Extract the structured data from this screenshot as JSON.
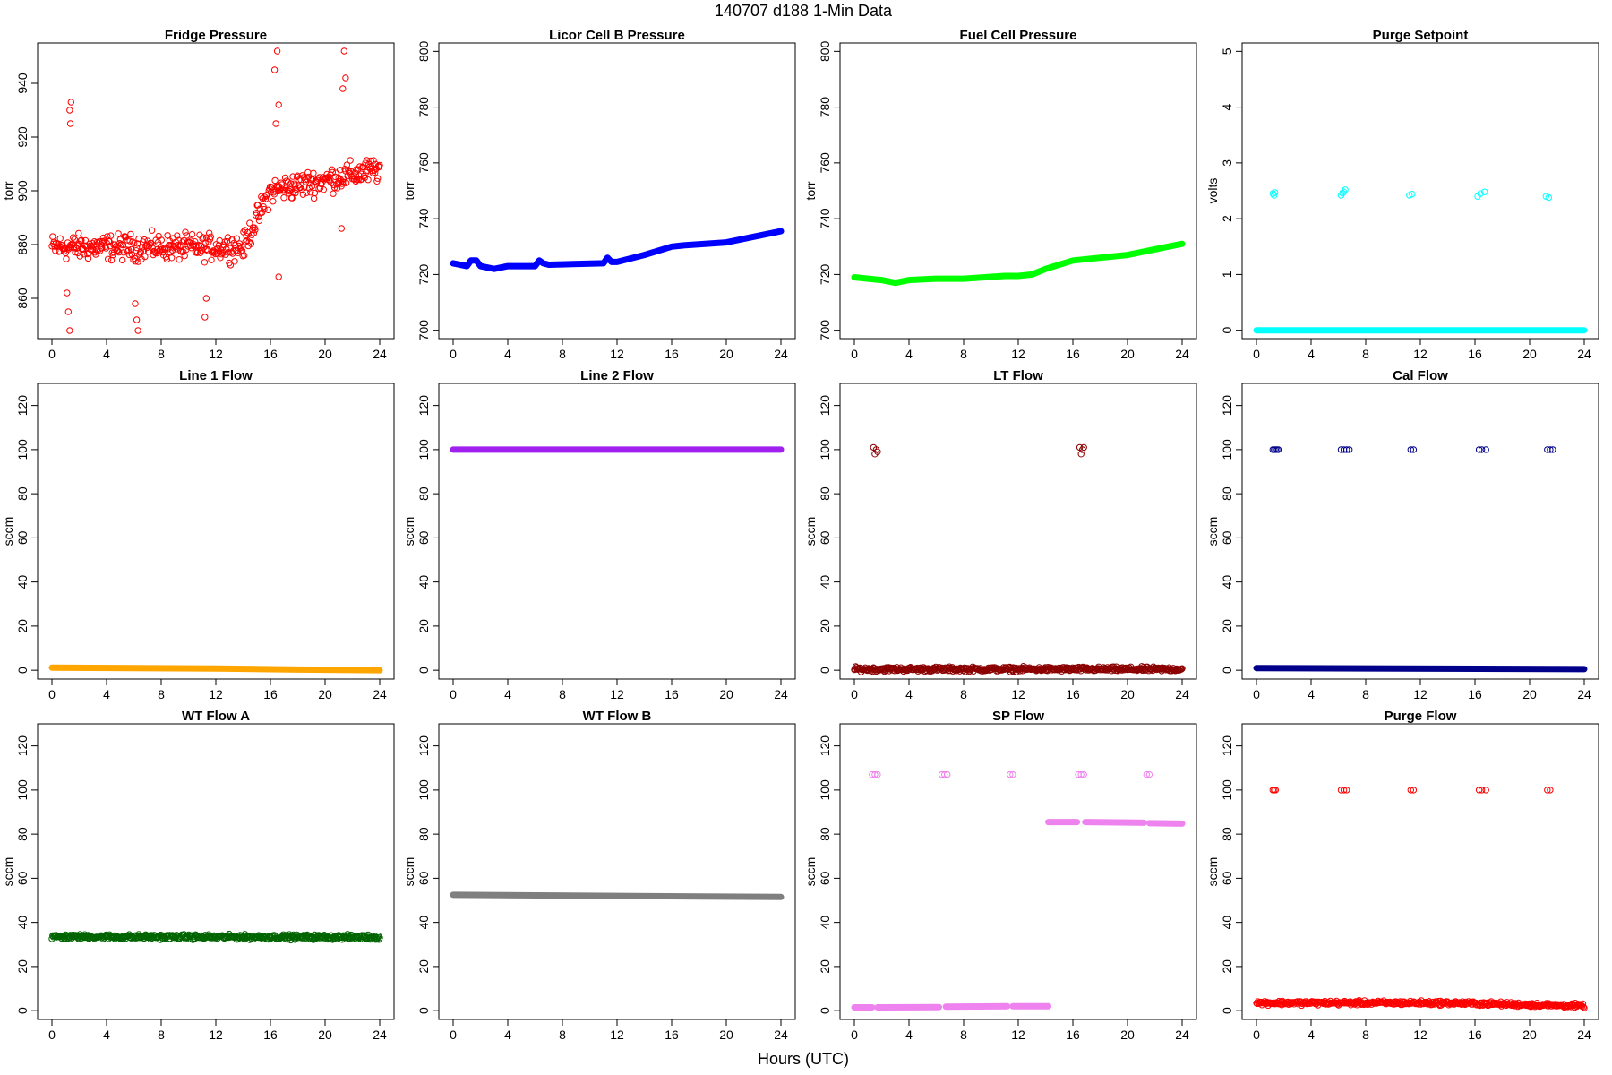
{
  "figure": {
    "title": "140707   d188   1-Min Data",
    "xlabel": "Hours (UTC)"
  },
  "chart_data": [
    {
      "type": "scatter",
      "title": "Fridge Pressure",
      "ylabel": "torr",
      "color": "#FF0000",
      "xlim": [
        0,
        24
      ],
      "ylim": [
        845,
        955
      ],
      "xticks": [
        0,
        4,
        8,
        12,
        16,
        20,
        24
      ],
      "yticks": [
        860,
        880,
        900,
        920,
        940
      ],
      "series": [
        {
          "kind": "noise",
          "x": [
            0,
            14,
            16,
            24
          ],
          "y": [
            879,
            879,
            900,
            908
          ],
          "spread": 7
        },
        {
          "kind": "cluster",
          "points": [
            [
              1.3,
              930
            ],
            [
              1.35,
              925
            ],
            [
              1.4,
              933
            ],
            [
              1.2,
              855
            ],
            [
              1.3,
              848
            ],
            [
              1.1,
              862
            ],
            [
              6.2,
              852
            ],
            [
              6.3,
              848
            ],
            [
              6.1,
              858
            ],
            [
              11.2,
              853
            ],
            [
              11.3,
              860
            ],
            [
              16.3,
              945
            ],
            [
              16.5,
              952
            ],
            [
              16.6,
              932
            ],
            [
              16.4,
              925
            ],
            [
              16.6,
              868
            ],
            [
              21.4,
              952
            ],
            [
              21.5,
              942
            ],
            [
              21.2,
              886
            ],
            [
              21.3,
              938
            ]
          ]
        }
      ]
    },
    {
      "type": "scatter",
      "title": "Licor Cell B Pressure",
      "ylabel": "torr",
      "color": "#0000FF",
      "xlim": [
        0,
        24
      ],
      "ylim": [
        697,
        803
      ],
      "xticks": [
        0,
        4,
        8,
        12,
        16,
        20,
        24
      ],
      "yticks": [
        700,
        720,
        740,
        760,
        780,
        800
      ],
      "series": [
        {
          "kind": "line",
          "x": [
            0,
            1,
            1.3,
            1.7,
            2,
            3,
            4,
            6,
            6.3,
            6.6,
            7,
            11,
            11.3,
            11.6,
            12,
            14,
            16,
            17,
            20,
            24
          ],
          "y": [
            724,
            723,
            725,
            725,
            723,
            722,
            723,
            723,
            725,
            724,
            723.5,
            724,
            726,
            724.5,
            724.5,
            727,
            730,
            730.5,
            731.5,
            735.5
          ]
        }
      ]
    },
    {
      "type": "scatter",
      "title": "Fuel Cell Pressure",
      "ylabel": "torr",
      "color": "#00FF00",
      "xlim": [
        0,
        24
      ],
      "ylim": [
        697,
        803
      ],
      "xticks": [
        0,
        4,
        8,
        12,
        16,
        20,
        24
      ],
      "yticks": [
        700,
        720,
        740,
        760,
        780,
        800
      ],
      "series": [
        {
          "kind": "line",
          "x": [
            0,
            1,
            2,
            3,
            4,
            6,
            8,
            11,
            12,
            13,
            14,
            16,
            18,
            20,
            24
          ],
          "y": [
            719,
            718.5,
            718,
            717,
            718,
            718.5,
            718.5,
            719.5,
            719.5,
            720,
            722,
            725,
            726,
            727,
            731
          ]
        }
      ]
    },
    {
      "type": "scatter",
      "title": "Purge Setpoint",
      "ylabel": "volts",
      "color": "#00FFFF",
      "xlim": [
        0,
        24
      ],
      "ylim": [
        -0.15,
        5.15
      ],
      "xticks": [
        0,
        4,
        8,
        12,
        16,
        20,
        24
      ],
      "yticks": [
        0,
        1,
        2,
        3,
        4,
        5
      ],
      "series": [
        {
          "kind": "line",
          "x": [
            0,
            24
          ],
          "y": [
            0,
            0
          ]
        },
        {
          "kind": "cluster",
          "points": [
            [
              1.2,
              2.45
            ],
            [
              1.3,
              2.42
            ],
            [
              1.35,
              2.47
            ],
            [
              6.2,
              2.42
            ],
            [
              6.3,
              2.46
            ],
            [
              6.4,
              2.48
            ],
            [
              6.5,
              2.52
            ],
            [
              11.2,
              2.42
            ],
            [
              11.4,
              2.44
            ],
            [
              16.2,
              2.4
            ],
            [
              16.4,
              2.45
            ],
            [
              16.7,
              2.48
            ],
            [
              21.2,
              2.4
            ],
            [
              21.4,
              2.38
            ]
          ]
        }
      ]
    },
    {
      "type": "scatter",
      "title": "Line 1 Flow",
      "ylabel": "sccm",
      "color": "#FFA500",
      "xlim": [
        0,
        24
      ],
      "ylim": [
        -4,
        130
      ],
      "xticks": [
        0,
        4,
        8,
        12,
        16,
        20,
        24
      ],
      "yticks": [
        0,
        20,
        40,
        60,
        80,
        100,
        120
      ],
      "series": [
        {
          "kind": "line",
          "x": [
            0,
            6,
            12,
            18,
            24
          ],
          "y": [
            1.2,
            1,
            0.8,
            0.3,
            0
          ]
        }
      ]
    },
    {
      "type": "scatter",
      "title": "Line 2 Flow",
      "ylabel": "sccm",
      "color": "#A020F0",
      "xlim": [
        0,
        24
      ],
      "ylim": [
        -4,
        130
      ],
      "xticks": [
        0,
        4,
        8,
        12,
        16,
        20,
        24
      ],
      "yticks": [
        0,
        20,
        40,
        60,
        80,
        100,
        120
      ],
      "series": [
        {
          "kind": "line",
          "x": [
            0,
            24
          ],
          "y": [
            100,
            100
          ]
        }
      ]
    },
    {
      "type": "scatter",
      "title": "LT Flow",
      "ylabel": "sccm",
      "color": "#8B0000",
      "xlim": [
        0,
        24
      ],
      "ylim": [
        -4,
        130
      ],
      "xticks": [
        0,
        4,
        8,
        12,
        16,
        20,
        24
      ],
      "yticks": [
        0,
        20,
        40,
        60,
        80,
        100,
        120
      ],
      "series": [
        {
          "kind": "noise",
          "x": [
            0,
            24
          ],
          "y": [
            0.5,
            0.5
          ],
          "spread": 1.5
        },
        {
          "kind": "cluster",
          "points": [
            [
              1.4,
              101
            ],
            [
              1.5,
              98
            ],
            [
              1.6,
              100
            ],
            [
              1.7,
              99
            ],
            [
              16.5,
              101
            ],
            [
              16.6,
              98
            ],
            [
              16.7,
              100
            ],
            [
              16.8,
              101
            ]
          ]
        }
      ]
    },
    {
      "type": "scatter",
      "title": "Cal Flow",
      "ylabel": "sccm",
      "color": "#00008B",
      "xlim": [
        0,
        24
      ],
      "ylim": [
        -4,
        130
      ],
      "xticks": [
        0,
        4,
        8,
        12,
        16,
        20,
        24
      ],
      "yticks": [
        0,
        20,
        40,
        60,
        80,
        100,
        120
      ],
      "series": [
        {
          "kind": "line",
          "x": [
            0,
            24
          ],
          "y": [
            1,
            0.5
          ]
        },
        {
          "kind": "cluster",
          "points": [
            [
              1.2,
              100
            ],
            [
              1.3,
              100
            ],
            [
              1.4,
              100
            ],
            [
              1.5,
              100
            ],
            [
              1.6,
              100
            ],
            [
              6.2,
              100
            ],
            [
              6.4,
              100
            ],
            [
              6.6,
              100
            ],
            [
              6.8,
              100
            ],
            [
              11.3,
              100
            ],
            [
              11.5,
              100
            ],
            [
              16.3,
              100
            ],
            [
              16.5,
              100
            ],
            [
              16.8,
              100
            ],
            [
              21.3,
              100
            ],
            [
              21.5,
              100
            ],
            [
              21.7,
              100
            ]
          ]
        }
      ]
    },
    {
      "type": "scatter",
      "title": "WT Flow A",
      "ylabel": "sccm",
      "color": "#006400",
      "xlim": [
        0,
        24
      ],
      "ylim": [
        -4,
        130
      ],
      "xticks": [
        0,
        4,
        8,
        12,
        16,
        20,
        24
      ],
      "yticks": [
        0,
        20,
        40,
        60,
        80,
        100,
        120
      ],
      "series": [
        {
          "kind": "noise",
          "x": [
            0,
            24
          ],
          "y": [
            33.5,
            33.3
          ],
          "spread": 1.6
        }
      ]
    },
    {
      "type": "scatter",
      "title": "WT Flow B",
      "ylabel": "sccm",
      "color": "#7F7F7F",
      "xlim": [
        0,
        24
      ],
      "ylim": [
        -4,
        130
      ],
      "xticks": [
        0,
        4,
        8,
        12,
        16,
        20,
        24
      ],
      "yticks": [
        0,
        20,
        40,
        60,
        80,
        100,
        120
      ],
      "series": [
        {
          "kind": "line",
          "x": [
            0,
            12,
            24
          ],
          "y": [
            52.5,
            52,
            51.5
          ]
        }
      ]
    },
    {
      "type": "scatter",
      "title": "SP Flow",
      "ylabel": "sccm",
      "color": "#EE82EE",
      "xlim": [
        0,
        24
      ],
      "ylim": [
        -4,
        130
      ],
      "xticks": [
        0,
        4,
        8,
        12,
        16,
        20,
        24
      ],
      "yticks": [
        0,
        20,
        40,
        60,
        80,
        100,
        120
      ],
      "series": [
        {
          "kind": "segment",
          "x": [
            0,
            1.3
          ],
          "y": [
            1.5,
            1.5
          ]
        },
        {
          "kind": "segment",
          "x": [
            1.7,
            6.2
          ],
          "y": [
            1.5,
            1.6
          ]
        },
        {
          "kind": "segment",
          "x": [
            6.7,
            11.2
          ],
          "y": [
            1.8,
            2.0
          ]
        },
        {
          "kind": "segment",
          "x": [
            11.6,
            14.2
          ],
          "y": [
            2.0,
            2.0
          ]
        },
        {
          "kind": "segment",
          "x": [
            14.2,
            16.3
          ],
          "y": [
            85.5,
            85.5
          ]
        },
        {
          "kind": "segment",
          "x": [
            16.9,
            21.2
          ],
          "y": [
            85.5,
            85.2
          ]
        },
        {
          "kind": "segment",
          "x": [
            21.6,
            24
          ],
          "y": [
            85.0,
            84.8
          ]
        },
        {
          "kind": "cluster",
          "points": [
            [
              1.3,
              107
            ],
            [
              1.5,
              107
            ],
            [
              1.7,
              107
            ],
            [
              6.4,
              107
            ],
            [
              6.6,
              107
            ],
            [
              6.8,
              107
            ],
            [
              11.4,
              107
            ],
            [
              11.6,
              107
            ],
            [
              16.4,
              107
            ],
            [
              16.6,
              107
            ],
            [
              16.8,
              107
            ],
            [
              21.4,
              107
            ],
            [
              21.6,
              107
            ]
          ]
        }
      ]
    },
    {
      "type": "scatter",
      "title": "Purge Flow",
      "ylabel": "sccm",
      "color": "#FF0000",
      "xlim": [
        0,
        24
      ],
      "ylim": [
        -4,
        130
      ],
      "xticks": [
        0,
        4,
        8,
        12,
        16,
        20,
        24
      ],
      "yticks": [
        0,
        20,
        40,
        60,
        80,
        100,
        120
      ],
      "series": [
        {
          "kind": "noise",
          "x": [
            0,
            14,
            24
          ],
          "y": [
            3.5,
            3.5,
            2.2
          ],
          "spread": 1.4
        },
        {
          "kind": "cluster",
          "points": [
            [
              1.2,
              100
            ],
            [
              1.3,
              100
            ],
            [
              1.4,
              100
            ],
            [
              6.2,
              100
            ],
            [
              6.4,
              100
            ],
            [
              6.6,
              100
            ],
            [
              11.3,
              100
            ],
            [
              11.5,
              100
            ],
            [
              16.3,
              100
            ],
            [
              16.5,
              100
            ],
            [
              16.8,
              100
            ],
            [
              21.3,
              100
            ],
            [
              21.5,
              100
            ]
          ]
        }
      ]
    }
  ]
}
